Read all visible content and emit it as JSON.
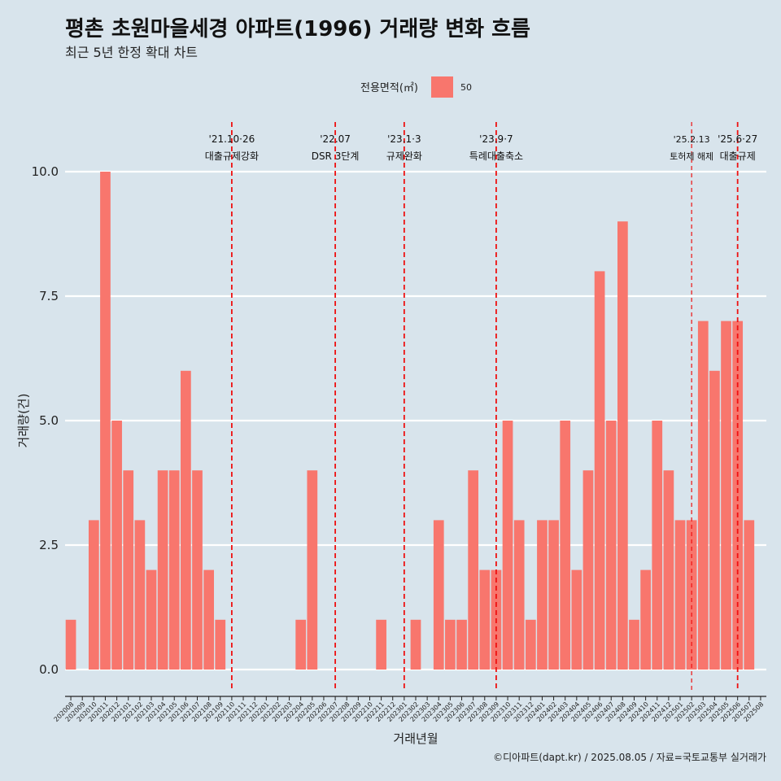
{
  "chart_data": {
    "type": "bar",
    "title": "평촌 초원마을세경 아파트(1996) 거래량 변화 흐름",
    "subtitle": "최근 5년 한정 확대 차트",
    "xlabel": "거래년월",
    "ylabel": "거래량(건)",
    "legend": {
      "title": "전용면적(㎡)",
      "entries": [
        "50"
      ],
      "color": "#f8766d",
      "placement": "top-center"
    },
    "ylim": [
      0,
      10
    ],
    "yticks": [
      "0.0",
      "2.5",
      "5.0",
      "7.5",
      "10.0"
    ],
    "categories": [
      "202008",
      "202009",
      "202010",
      "202011",
      "202012",
      "202101",
      "202102",
      "202103",
      "202104",
      "202105",
      "202106",
      "202107",
      "202108",
      "202109",
      "202110",
      "202111",
      "202112",
      "202201",
      "202202",
      "202203",
      "202204",
      "202205",
      "202206",
      "202207",
      "202208",
      "202209",
      "202210",
      "202211",
      "202212",
      "202301",
      "202302",
      "202303",
      "202304",
      "202305",
      "202306",
      "202307",
      "202308",
      "202309",
      "202310",
      "202311",
      "202312",
      "202401",
      "202402",
      "202403",
      "202404",
      "202405",
      "202406",
      "202407",
      "202408",
      "202409",
      "202410",
      "202411",
      "202412",
      "202501",
      "202502",
      "202503",
      "202504",
      "202505",
      "202506",
      "202507",
      "202508"
    ],
    "series": [
      {
        "name": "50",
        "values": [
          1,
          0,
          3,
          10,
          5,
          4,
          3,
          2,
          4,
          4,
          6,
          4,
          2,
          1,
          0,
          0,
          0,
          0,
          0,
          0,
          1,
          4,
          0,
          0,
          0,
          0,
          0,
          1,
          0,
          0,
          1,
          0,
          3,
          1,
          1,
          4,
          2,
          2,
          5,
          3,
          1,
          3,
          3,
          5,
          2,
          4,
          8,
          5,
          9,
          1,
          2,
          5,
          4,
          3,
          3,
          7,
          6,
          7,
          7,
          3,
          0
        ]
      }
    ],
    "annotations": [
      {
        "date_line1": "'21.10·26",
        "date_line2": "대출규제강화",
        "x": "202110",
        "style": "major"
      },
      {
        "date_line1": "'22.07",
        "date_line2": "DSR 3단계",
        "x": "202207",
        "style": "major"
      },
      {
        "date_line1": "'23.1·3",
        "date_line2": "규제완화",
        "x": "202301",
        "style": "major"
      },
      {
        "date_line1": "'23.9·7",
        "date_line2": "특례대출축소",
        "x": "202309",
        "style": "major"
      },
      {
        "date_line1": "'25.2.13",
        "date_line2": "토허제 해제",
        "x": "202502",
        "style": "minor"
      },
      {
        "date_line1": "'25.6·27",
        "date_line2": "대출규제",
        "x": "202506",
        "style": "major"
      }
    ],
    "grid": true
  },
  "caption": "©디아파트(dapt.kr) / 2025.08.05 / 자료=국토교통부 실거래가"
}
